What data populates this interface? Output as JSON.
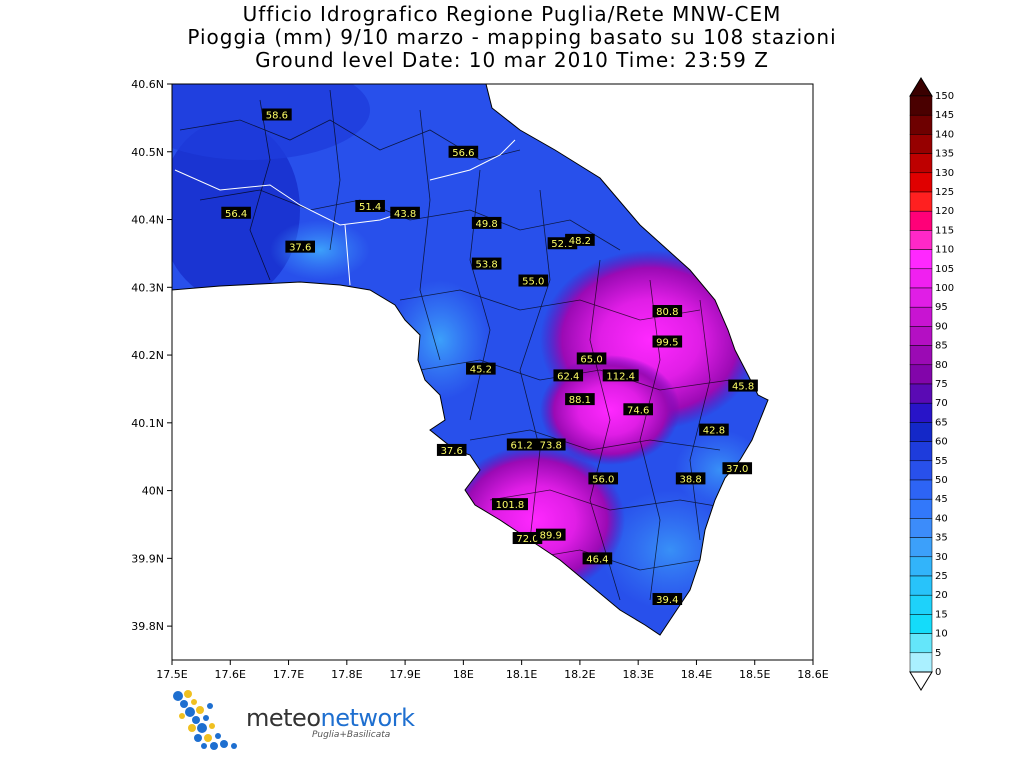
{
  "header": {
    "line1": "Ufficio Idrografico Regione Puglia/Rete MNW-CEM",
    "line2": "Pioggia (mm) 9/10 marzo - mapping basato su 108 stazioni",
    "line3": "Ground level    Date: 10 mar 2010    Time: 23:59 Z"
  },
  "axes": {
    "x_ticks": [
      "17.5E",
      "17.6E",
      "17.7E",
      "17.8E",
      "17.9E",
      "18E",
      "18.1E",
      "18.2E",
      "18.3E",
      "18.4E",
      "18.5E",
      "18.6E"
    ],
    "y_ticks": [
      "40.6N",
      "40.5N",
      "40.4N",
      "40.3N",
      "40.2N",
      "40.1N",
      "40N",
      "39.9N",
      "39.8N"
    ],
    "xlim": [
      17.5,
      18.6
    ],
    "ylim": [
      39.75,
      40.6
    ]
  },
  "stations": [
    {
      "label": "58.6",
      "lon": 17.68,
      "lat": 40.555
    },
    {
      "label": "56.6",
      "lon": 18.0,
      "lat": 40.5
    },
    {
      "label": "56.4",
      "lon": 17.61,
      "lat": 40.41
    },
    {
      "label": "51.4",
      "lon": 17.84,
      "lat": 40.42
    },
    {
      "label": "43.8",
      "lon": 17.9,
      "lat": 40.41
    },
    {
      "label": "49.8",
      "lon": 18.04,
      "lat": 40.395
    },
    {
      "label": "37.6",
      "lon": 17.72,
      "lat": 40.36
    },
    {
      "label": "52.0",
      "lon": 18.17,
      "lat": 40.365
    },
    {
      "label": "48.2",
      "lon": 18.2,
      "lat": 40.37
    },
    {
      "label": "53.8",
      "lon": 18.04,
      "lat": 40.335
    },
    {
      "label": "55.0",
      "lon": 18.12,
      "lat": 40.31
    },
    {
      "label": "80.8",
      "lon": 18.35,
      "lat": 40.265
    },
    {
      "label": "99.5",
      "lon": 18.35,
      "lat": 40.22
    },
    {
      "label": "65.0",
      "lon": 18.22,
      "lat": 40.195
    },
    {
      "label": "45.2",
      "lon": 18.03,
      "lat": 40.18
    },
    {
      "label": "62.4",
      "lon": 18.18,
      "lat": 40.17
    },
    {
      "label": "112.4",
      "lon": 18.27,
      "lat": 40.17
    },
    {
      "label": "45.8",
      "lon": 18.48,
      "lat": 40.155
    },
    {
      "label": "88.1",
      "lon": 18.2,
      "lat": 40.135
    },
    {
      "label": "74.6",
      "lon": 18.3,
      "lat": 40.12
    },
    {
      "label": "42.8",
      "lon": 18.43,
      "lat": 40.09
    },
    {
      "label": "37.6",
      "lon": 17.98,
      "lat": 40.06
    },
    {
      "label": "61.2",
      "lon": 18.1,
      "lat": 40.068
    },
    {
      "label": "73.8",
      "lon": 18.15,
      "lat": 40.068
    },
    {
      "label": "37.0",
      "lon": 18.47,
      "lat": 40.033
    },
    {
      "label": "56.0",
      "lon": 18.24,
      "lat": 40.018
    },
    {
      "label": "38.8",
      "lon": 18.39,
      "lat": 40.018
    },
    {
      "label": "101.8",
      "lon": 18.08,
      "lat": 39.98
    },
    {
      "label": "72.0",
      "lon": 18.11,
      "lat": 39.93
    },
    {
      "label": "89.9",
      "lon": 18.15,
      "lat": 39.935
    },
    {
      "label": "46.4",
      "lon": 18.23,
      "lat": 39.9
    },
    {
      "label": "39.4",
      "lon": 18.35,
      "lat": 39.84
    }
  ],
  "legend": {
    "labels": [
      "150",
      "145",
      "140",
      "135",
      "130",
      "125",
      "120",
      "115",
      "110",
      "105",
      "100",
      "95",
      "90",
      "85",
      "80",
      "75",
      "70",
      "65",
      "60",
      "55",
      "50",
      "45",
      "40",
      "35",
      "30",
      "25",
      "20",
      "15",
      "10",
      "5",
      "0"
    ],
    "colors": [
      "#4a0000",
      "#6e0000",
      "#960000",
      "#be0000",
      "#e00000",
      "#ff2020",
      "#ff0078",
      "#ff28c8",
      "#ff28ff",
      "#f020f0",
      "#e01ee6",
      "#c814d2",
      "#b40fc3",
      "#9b0ab4",
      "#8205aa",
      "#5a0ab4",
      "#2814c8",
      "#1428c8",
      "#1e3cdc",
      "#2850eb",
      "#2d64f5",
      "#3278fa",
      "#3c8cfa",
      "#3ca0fa",
      "#32b4fa",
      "#28c3fa",
      "#1ed2fa",
      "#14dcfa",
      "#64e6fa",
      "#aaf0ff"
    ]
  },
  "logo": {
    "brand_a": "meteo",
    "brand_b": "network",
    "subtitle": "Puglia+Basilicata"
  }
}
